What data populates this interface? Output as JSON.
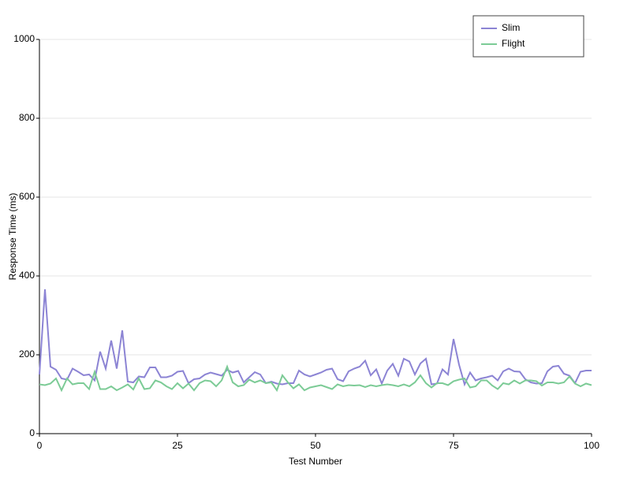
{
  "chart_data": {
    "type": "line",
    "xlabel": "Test Number",
    "ylabel": "Response Time (ms)",
    "x": [
      0,
      1,
      2,
      3,
      4,
      5,
      6,
      7,
      8,
      9,
      10,
      11,
      12,
      13,
      14,
      15,
      16,
      17,
      18,
      19,
      20,
      21,
      22,
      23,
      24,
      25,
      26,
      27,
      28,
      29,
      30,
      31,
      32,
      33,
      34,
      35,
      36,
      37,
      38,
      39,
      40,
      41,
      42,
      43,
      44,
      45,
      46,
      47,
      48,
      49,
      50,
      51,
      52,
      53,
      54,
      55,
      56,
      57,
      58,
      59,
      60,
      61,
      62,
      63,
      64,
      65,
      66,
      67,
      68,
      69,
      70,
      71,
      72,
      73,
      74,
      75,
      76,
      77,
      78,
      79,
      80,
      81,
      82,
      83,
      84,
      85,
      86,
      87,
      88,
      89,
      90,
      91,
      92,
      93,
      94,
      95,
      96,
      97,
      98,
      99,
      100
    ],
    "series": [
      {
        "name": "Slim",
        "color": "#8c84d4",
        "values": [
          150,
          366,
          170,
          162,
          140,
          137,
          165,
          157,
          148,
          150,
          135,
          208,
          165,
          236,
          165,
          262,
          132,
          130,
          145,
          143,
          168,
          168,
          143,
          143,
          147,
          157,
          159,
          128,
          138,
          140,
          150,
          155,
          151,
          147,
          162,
          155,
          159,
          130,
          143,
          156,
          150,
          128,
          132,
          127,
          125,
          128,
          128,
          160,
          150,
          145,
          150,
          155,
          162,
          165,
          138,
          133,
          158,
          165,
          170,
          185,
          148,
          163,
          127,
          160,
          177,
          147,
          190,
          183,
          150,
          178,
          190,
          125,
          127,
          163,
          150,
          240,
          175,
          125,
          155,
          135,
          140,
          143,
          147,
          135,
          158,
          165,
          158,
          157,
          138,
          130,
          127,
          128,
          158,
          170,
          172,
          152,
          147,
          128,
          157,
          160,
          160
        ]
      },
      {
        "name": "Flight",
        "color": "#7ccb96",
        "values": [
          125,
          123,
          127,
          140,
          110,
          140,
          125,
          128,
          128,
          113,
          157,
          113,
          113,
          120,
          110,
          117,
          125,
          112,
          140,
          113,
          115,
          135,
          130,
          120,
          113,
          128,
          115,
          127,
          110,
          128,
          135,
          133,
          120,
          135,
          170,
          130,
          120,
          123,
          137,
          130,
          135,
          128,
          130,
          110,
          148,
          130,
          115,
          125,
          110,
          117,
          120,
          123,
          118,
          113,
          125,
          120,
          123,
          122,
          123,
          118,
          123,
          120,
          123,
          125,
          123,
          120,
          125,
          120,
          130,
          148,
          128,
          117,
          128,
          128,
          123,
          133,
          137,
          140,
          117,
          120,
          135,
          135,
          122,
          113,
          128,
          125,
          135,
          127,
          135,
          135,
          133,
          122,
          130,
          130,
          127,
          130,
          145,
          127,
          120,
          127,
          123
        ]
      }
    ],
    "xlim": [
      0,
      100
    ],
    "xticks": [
      0,
      25,
      50,
      75,
      100
    ],
    "ylim": [
      0,
      1000
    ],
    "yticks": [
      0,
      200,
      400,
      600,
      800,
      1000
    ],
    "grid": true,
    "legend": "upper right"
  }
}
